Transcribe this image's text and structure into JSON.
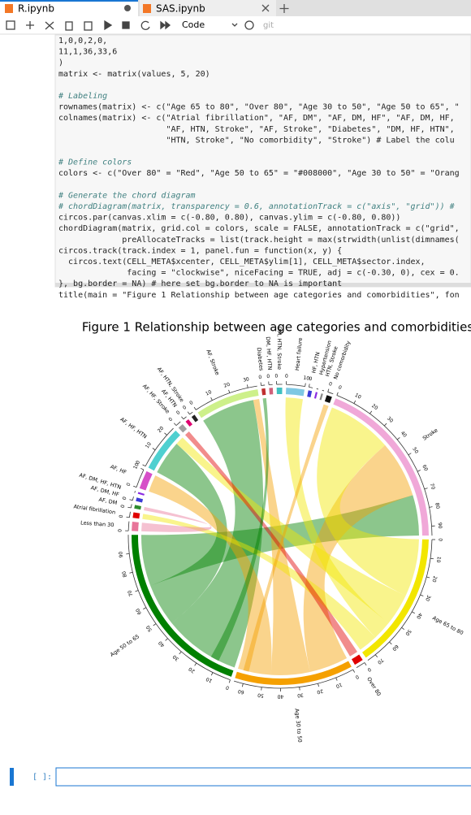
{
  "tabs": [
    {
      "label": "R.ipynb"
    },
    {
      "label": "SAS.ipynb"
    }
  ],
  "toolbar": {
    "cell_type": "Code",
    "git": "git"
  },
  "code_lines": [
    "1,0,0,2,0,",
    "11,1,36,33,6",
    ")",
    "matrix <- matrix(values, 5, 20)",
    "",
    "# Labeling",
    "rownames(matrix) <- c(\"Age 65 to 80\", \"Over 80\", \"Age 30 to 50\", \"Age 50 to 65\", \"",
    "colnames(matrix) <- c(\"Atrial fibrillation\", \"AF, DM\", \"AF, DM, HF\", \"AF, DM, HF,",
    "                      \"AF, HTN, Stroke\", \"AF, Stroke\", \"Diabetes\", \"DM, HF, HTN\",",
    "                      \"HTN, Stroke\", \"No comorbidity\", \"Stroke\") # Label the colu",
    "",
    "# Define colors",
    "colors <- c(\"Over 80\" = \"Red\", \"Age 50 to 65\" = \"#008000\", \"Age 30 to 50\" = \"Orang",
    "",
    "# Generate the chord diagram",
    "# chordDiagram(matrix, transparency = 0.6, annotationTrack = c(\"axis\", \"grid\")) #",
    "circos.par(canvas.xlim = c(-0.80, 0.80), canvas.ylim = c(-0.80, 0.80))",
    "chordDiagram(matrix, grid.col = colors, scale = FALSE, annotationTrack = c(\"grid\",",
    "             preAllocateTracks = list(track.height = max(strwidth(unlist(dimnames(",
    "circos.track(track.index = 1, panel.fun = function(x, y) {",
    "  circos.text(CELL_META$xcenter, CELL_META$ylim[1], CELL_META$sector.index,",
    "              facing = \"clockwise\", niceFacing = TRUE, adj = c(-0.30, 0), cex = 0.",
    "}, bg.border = NA) # here set bg.border to NA is important",
    "title(main = \"Figure 1 Relationship between age categories and comorbidities\", fon"
  ],
  "figure": {
    "title": "Figure 1 Relationship between age categories and comorbidities",
    "sectors": [
      {
        "name": "Heart failure",
        "color": "#7ec8e3",
        "size": 10,
        "ticks": [
          0,
          10
        ]
      },
      {
        "name": "HF, HTN",
        "color": "#3b3bd6",
        "size": 2,
        "ticks": [
          0
        ]
      },
      {
        "name": "Hypertension",
        "color": "#8a2be2",
        "size": 1,
        "ticks": []
      },
      {
        "name": "HTN, Stroke",
        "color": "#888888",
        "size": 1,
        "ticks": []
      },
      {
        "name": "No comorbidity",
        "color": "#111111",
        "size": 3,
        "ticks": [
          0
        ]
      },
      {
        "name": "Stroke",
        "color": "#f0a8d8",
        "size": 95,
        "ticks": [
          0,
          10,
          20,
          30,
          40,
          50,
          60,
          70,
          80,
          90
        ]
      },
      {
        "name": "Age 65 to 80",
        "color": "#f2e600",
        "size": 75,
        "ticks": [
          0,
          10,
          20,
          30,
          40,
          50,
          60,
          70
        ]
      },
      {
        "name": "Over 80",
        "color": "#e00000",
        "size": 5,
        "ticks": [
          0
        ]
      },
      {
        "name": "Age 30 to 50",
        "color": "#f5a000",
        "size": 65,
        "ticks": [
          0,
          10,
          20,
          30,
          40,
          50,
          60
        ]
      },
      {
        "name": "Age 50 to 65",
        "color": "#008000",
        "size": 100,
        "ticks": [
          0,
          10,
          20,
          30,
          40,
          50,
          60,
          70,
          80,
          90
        ]
      },
      {
        "name": "Less than 30",
        "color": "#e8759a",
        "size": 5,
        "ticks": [
          0
        ]
      },
      {
        "name": "Atrial fibrillation",
        "color": "#e00000",
        "size": 3,
        "ticks": [
          0
        ]
      },
      {
        "name": "AF, DM",
        "color": "#2e8b2e",
        "size": 2,
        "ticks": [
          0
        ]
      },
      {
        "name": "AF, DM, HF",
        "color": "#3b3bd6",
        "size": 2,
        "ticks": [
          0
        ]
      },
      {
        "name": "AF, DM, HF, HTN",
        "color": "#8a2be2",
        "size": 1,
        "ticks": []
      },
      {
        "name": "AF, HF",
        "color": "#d64fc8",
        "size": 10,
        "ticks": [
          0,
          10
        ]
      },
      {
        "name": "AF, HF, HTN",
        "color": "#4fd0d0",
        "size": 25,
        "ticks": [
          0,
          10,
          20
        ]
      },
      {
        "name": "AF, HF, Stroke",
        "color": "#a0a0a0",
        "size": 3,
        "ticks": [
          0
        ]
      },
      {
        "name": "AF, HTN",
        "color": "#e00070",
        "size": 2,
        "ticks": [
          0
        ]
      },
      {
        "name": "AF, HTN, Stroke",
        "color": "#222222",
        "size": 2,
        "ticks": [
          0
        ]
      },
      {
        "name": "AF, Stroke",
        "color": "#cdf08a",
        "size": 35,
        "ticks": [
          0,
          10,
          20,
          30
        ]
      },
      {
        "name": "Diabetes",
        "color": "#c03030",
        "size": 2,
        "ticks": [
          0
        ]
      },
      {
        "name": "DM, HF, HTN",
        "color": "#d0607a",
        "size": 2,
        "ticks": [
          0
        ]
      },
      {
        "name": "DM, HTN, Stroke",
        "color": "#40c0c0",
        "size": 3,
        "ticks": [
          0
        ]
      }
    ]
  },
  "input_prompt": "[ ]:"
}
